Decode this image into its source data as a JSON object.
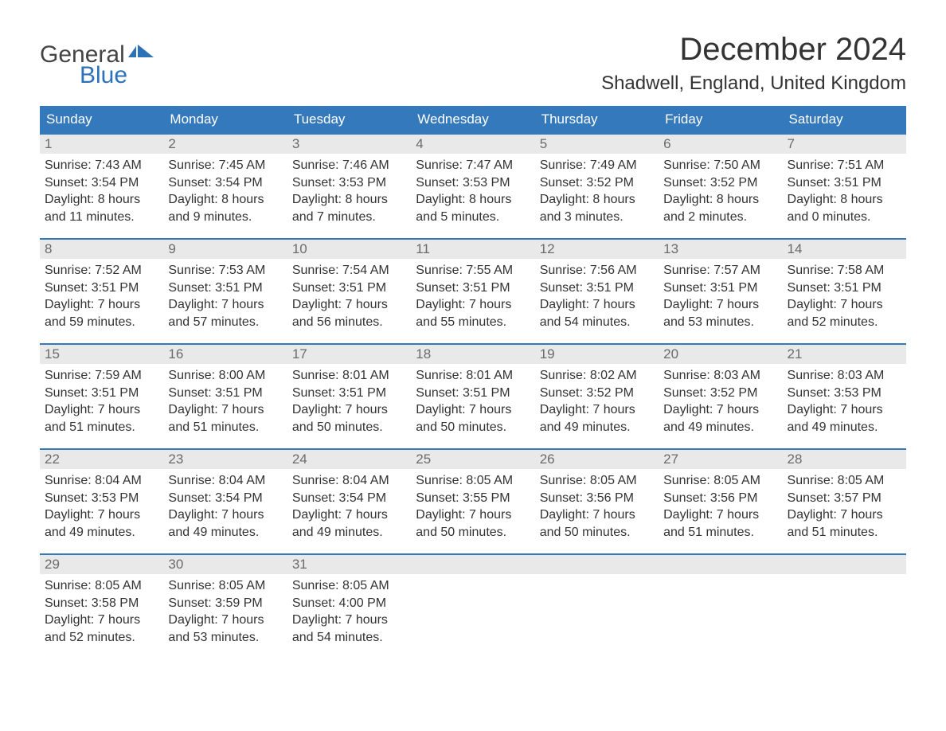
{
  "logo": {
    "line1": "General",
    "line2": "Blue",
    "text1_color": "#444444",
    "text2_color": "#2b72b9",
    "flag_color": "#2b72b9"
  },
  "title": "December 2024",
  "location": "Shadwell, England, United Kingdom",
  "colors": {
    "header_bg": "#3379bb",
    "header_text": "#ffffff",
    "daynum_bg": "#e9e9e9",
    "daynum_text": "#6b6b6b",
    "body_text": "#333333",
    "week_border": "#3379bb",
    "background": "#ffffff"
  },
  "typography": {
    "title_fontsize": 40,
    "location_fontsize": 24,
    "header_fontsize": 17,
    "daynum_fontsize": 17,
    "body_fontsize": 16,
    "logo_fontsize": 30
  },
  "day_headers": [
    "Sunday",
    "Monday",
    "Tuesday",
    "Wednesday",
    "Thursday",
    "Friday",
    "Saturday"
  ],
  "labels": {
    "sunrise": "Sunrise:",
    "sunset": "Sunset:",
    "daylight": "Daylight:"
  },
  "weeks": [
    [
      {
        "n": "1",
        "sunrise": "7:43 AM",
        "sunset": "3:54 PM",
        "daylight": "8 hours and 11 minutes."
      },
      {
        "n": "2",
        "sunrise": "7:45 AM",
        "sunset": "3:54 PM",
        "daylight": "8 hours and 9 minutes."
      },
      {
        "n": "3",
        "sunrise": "7:46 AM",
        "sunset": "3:53 PM",
        "daylight": "8 hours and 7 minutes."
      },
      {
        "n": "4",
        "sunrise": "7:47 AM",
        "sunset": "3:53 PM",
        "daylight": "8 hours and 5 minutes."
      },
      {
        "n": "5",
        "sunrise": "7:49 AM",
        "sunset": "3:52 PM",
        "daylight": "8 hours and 3 minutes."
      },
      {
        "n": "6",
        "sunrise": "7:50 AM",
        "sunset": "3:52 PM",
        "daylight": "8 hours and 2 minutes."
      },
      {
        "n": "7",
        "sunrise": "7:51 AM",
        "sunset": "3:51 PM",
        "daylight": "8 hours and 0 minutes."
      }
    ],
    [
      {
        "n": "8",
        "sunrise": "7:52 AM",
        "sunset": "3:51 PM",
        "daylight": "7 hours and 59 minutes."
      },
      {
        "n": "9",
        "sunrise": "7:53 AM",
        "sunset": "3:51 PM",
        "daylight": "7 hours and 57 minutes."
      },
      {
        "n": "10",
        "sunrise": "7:54 AM",
        "sunset": "3:51 PM",
        "daylight": "7 hours and 56 minutes."
      },
      {
        "n": "11",
        "sunrise": "7:55 AM",
        "sunset": "3:51 PM",
        "daylight": "7 hours and 55 minutes."
      },
      {
        "n": "12",
        "sunrise": "7:56 AM",
        "sunset": "3:51 PM",
        "daylight": "7 hours and 54 minutes."
      },
      {
        "n": "13",
        "sunrise": "7:57 AM",
        "sunset": "3:51 PM",
        "daylight": "7 hours and 53 minutes."
      },
      {
        "n": "14",
        "sunrise": "7:58 AM",
        "sunset": "3:51 PM",
        "daylight": "7 hours and 52 minutes."
      }
    ],
    [
      {
        "n": "15",
        "sunrise": "7:59 AM",
        "sunset": "3:51 PM",
        "daylight": "7 hours and 51 minutes."
      },
      {
        "n": "16",
        "sunrise": "8:00 AM",
        "sunset": "3:51 PM",
        "daylight": "7 hours and 51 minutes."
      },
      {
        "n": "17",
        "sunrise": "8:01 AM",
        "sunset": "3:51 PM",
        "daylight": "7 hours and 50 minutes."
      },
      {
        "n": "18",
        "sunrise": "8:01 AM",
        "sunset": "3:51 PM",
        "daylight": "7 hours and 50 minutes."
      },
      {
        "n": "19",
        "sunrise": "8:02 AM",
        "sunset": "3:52 PM",
        "daylight": "7 hours and 49 minutes."
      },
      {
        "n": "20",
        "sunrise": "8:03 AM",
        "sunset": "3:52 PM",
        "daylight": "7 hours and 49 minutes."
      },
      {
        "n": "21",
        "sunrise": "8:03 AM",
        "sunset": "3:53 PM",
        "daylight": "7 hours and 49 minutes."
      }
    ],
    [
      {
        "n": "22",
        "sunrise": "8:04 AM",
        "sunset": "3:53 PM",
        "daylight": "7 hours and 49 minutes."
      },
      {
        "n": "23",
        "sunrise": "8:04 AM",
        "sunset": "3:54 PM",
        "daylight": "7 hours and 49 minutes."
      },
      {
        "n": "24",
        "sunrise": "8:04 AM",
        "sunset": "3:54 PM",
        "daylight": "7 hours and 49 minutes."
      },
      {
        "n": "25",
        "sunrise": "8:05 AM",
        "sunset": "3:55 PM",
        "daylight": "7 hours and 50 minutes."
      },
      {
        "n": "26",
        "sunrise": "8:05 AM",
        "sunset": "3:56 PM",
        "daylight": "7 hours and 50 minutes."
      },
      {
        "n": "27",
        "sunrise": "8:05 AM",
        "sunset": "3:56 PM",
        "daylight": "7 hours and 51 minutes."
      },
      {
        "n": "28",
        "sunrise": "8:05 AM",
        "sunset": "3:57 PM",
        "daylight": "7 hours and 51 minutes."
      }
    ],
    [
      {
        "n": "29",
        "sunrise": "8:05 AM",
        "sunset": "3:58 PM",
        "daylight": "7 hours and 52 minutes."
      },
      {
        "n": "30",
        "sunrise": "8:05 AM",
        "sunset": "3:59 PM",
        "daylight": "7 hours and 53 minutes."
      },
      {
        "n": "31",
        "sunrise": "8:05 AM",
        "sunset": "4:00 PM",
        "daylight": "7 hours and 54 minutes."
      },
      null,
      null,
      null,
      null
    ]
  ]
}
